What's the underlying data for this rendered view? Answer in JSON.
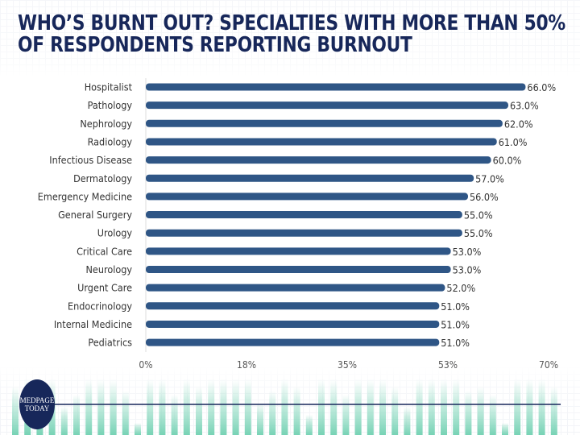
{
  "chart_data": {
    "type": "bar",
    "orientation": "horizontal",
    "title": "WHO’S BURNT OUT? SPECIALTIES WITH MORE THAN 50% OF RESPONDENTS REPORTING BURNOUT",
    "categories": [
      "Hospitalist",
      "Pathology",
      "Nephrology",
      "Radiology",
      "Infectious Disease",
      "Dermatology",
      "Emergency Medicine",
      "General Surgery",
      "Urology",
      "Critical Care",
      "Neurology",
      "Urgent Care",
      "Endocrinology",
      "Internal Medicine",
      "Pediatrics"
    ],
    "values": [
      66,
      63,
      62,
      61,
      60,
      57,
      56,
      55,
      55,
      53,
      53,
      52,
      51,
      51,
      51
    ],
    "value_labels": [
      "66.0%",
      "63.0%",
      "62.0%",
      "61.0%",
      "60.0%",
      "57.0%",
      "56.0%",
      "55.0%",
      "55.0%",
      "53.0%",
      "53.0%",
      "52.0%",
      "51.0%",
      "51.0%",
      "51.0%"
    ],
    "xticks": [
      0,
      17.5,
      35,
      52.5,
      70
    ],
    "xtick_labels": [
      "0%",
      "18%",
      "35%",
      "53%",
      "70%"
    ],
    "xlim": [
      0,
      70
    ],
    "xlabel": "",
    "ylabel": "",
    "bar_color": "#2f5686",
    "grid": false
  },
  "brand": {
    "logo_text": "MEDPAGE TODAY",
    "logo_color": "#17275a",
    "accent": "#1db584"
  }
}
